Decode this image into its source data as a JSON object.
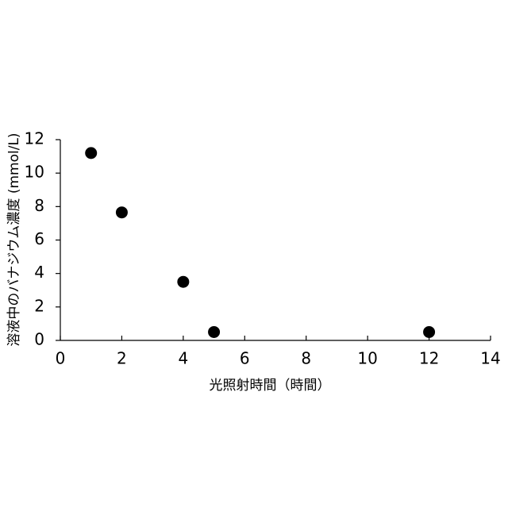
{
  "chart_data": {
    "type": "scatter",
    "x_label": "光照射時間（時間）",
    "y_label": "溶液中のバナジウム濃度 (mmol/L)",
    "series": [
      {
        "name": null,
        "color": "#000000",
        "x": [
          1,
          2,
          4,
          5,
          12
        ],
        "values": [
          11.2,
          7.65,
          3.5,
          0.5,
          0.5
        ]
      }
    ],
    "xlim": [
      0,
      14
    ],
    "xticks": [
      0,
      2,
      4,
      6,
      8,
      10,
      12,
      14
    ],
    "ylim": [
      0,
      12
    ],
    "yticks": [
      0,
      2,
      4,
      6,
      8,
      10,
      12
    ],
    "grid": false
  }
}
